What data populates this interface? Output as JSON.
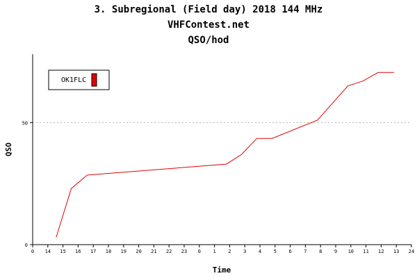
{
  "header": {
    "title": "3. Subregional (Field day) 2018 144 MHz",
    "site": "VHFContest.net",
    "subtitle": "QSO/hod"
  },
  "chart_data": {
    "type": "line",
    "xlabel": "Time",
    "ylabel": "QSO",
    "x_tick_labels": [
      "0",
      "14",
      "15",
      "16",
      "17",
      "18",
      "19",
      "20",
      "21",
      "22",
      "23",
      "0",
      "1",
      "2",
      "3",
      "4",
      "5",
      "6",
      "7",
      "8",
      "9",
      "10",
      "11",
      "12",
      "13",
      "24"
    ],
    "y_ticks": [
      0,
      50
    ],
    "ylim": [
      0,
      78
    ],
    "grid": {
      "y_at": [
        50
      ],
      "style": "dotted"
    },
    "legend_position": "top-left",
    "series": [
      {
        "name": "OK1FLC",
        "color": "#e00000",
        "points": [
          {
            "x": 1.55,
            "y": 3
          },
          {
            "x": 2.55,
            "y": 23
          },
          {
            "x": 3.6,
            "y": 28.5
          },
          {
            "x": 12.8,
            "y": 33
          },
          {
            "x": 13.8,
            "y": 37
          },
          {
            "x": 14.8,
            "y": 43.5
          },
          {
            "x": 15.8,
            "y": 43.5
          },
          {
            "x": 18.8,
            "y": 51
          },
          {
            "x": 19.8,
            "y": 58
          },
          {
            "x": 20.8,
            "y": 65
          },
          {
            "x": 21.8,
            "y": 67
          },
          {
            "x": 22.8,
            "y": 70.5
          },
          {
            "x": 23.85,
            "y": 70.5
          }
        ]
      }
    ]
  }
}
